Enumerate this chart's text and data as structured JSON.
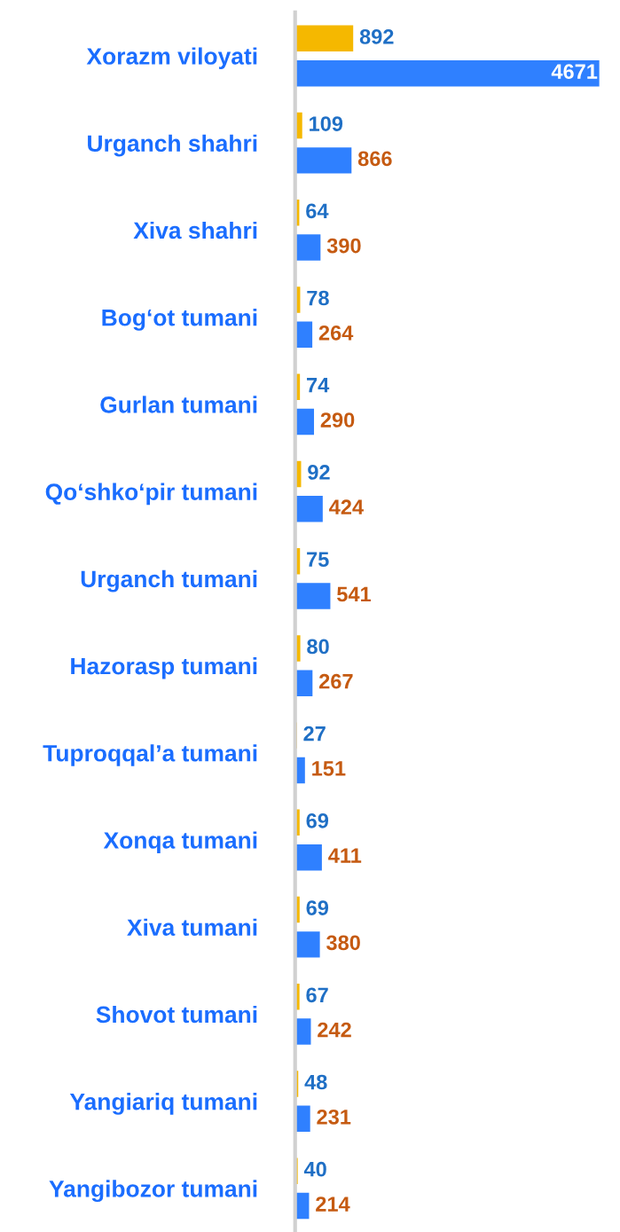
{
  "chart_data": {
    "type": "bar",
    "orientation": "horizontal",
    "data_labels": true,
    "grid": false,
    "legend": false,
    "categories": [
      "Xorazm viloyati",
      "Urganch shahri",
      "Xiva shahri",
      "Bog‘ot tumani",
      "Gurlan tumani",
      "Qo‘shko‘pir tumani",
      "Urganch tumani",
      "Hazorasp tumani",
      "Tuproqqal’a tumani",
      "Xonqa tumani",
      "Xiva tumani",
      "Shovot tumani",
      "Yangiariq tumani",
      "Yangibozor tumani"
    ],
    "series": [
      {
        "color": "#f5b800",
        "values": [
          892,
          109,
          64,
          78,
          74,
          92,
          75,
          80,
          27,
          69,
          69,
          67,
          48,
          40
        ]
      },
      {
        "color": "#2f80ff",
        "values": [
          4671,
          866,
          390,
          264,
          290,
          424,
          541,
          267,
          151,
          411,
          380,
          242,
          231,
          214
        ]
      }
    ]
  }
}
